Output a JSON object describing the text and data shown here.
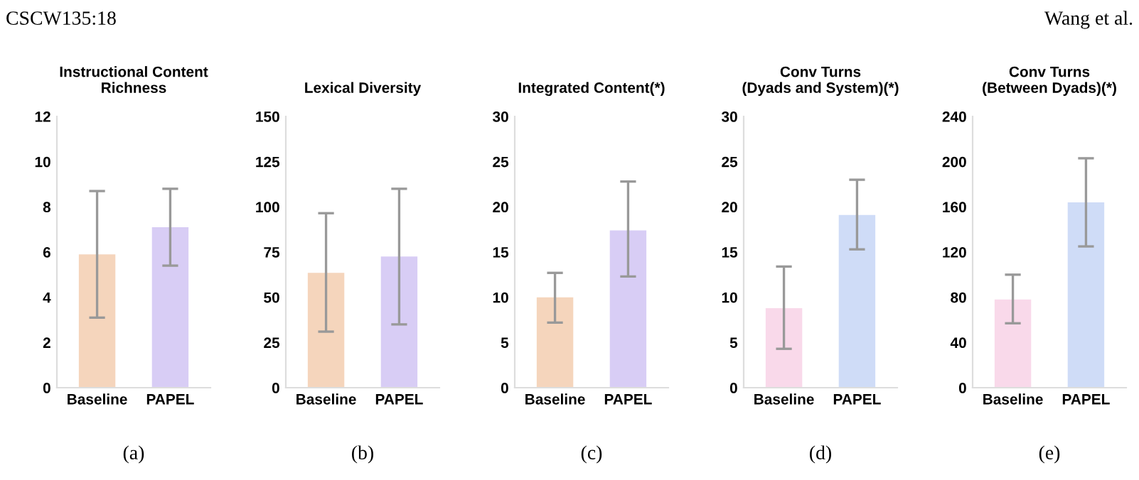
{
  "chart_data": [
    {
      "type": "bar",
      "title": "Instructional Content\nRichness",
      "categories": [
        "Baseline",
        "PAPEL"
      ],
      "values": [
        5.9,
        7.1
      ],
      "colors": [
        "#f5d5bc",
        "#d8cdf5"
      ],
      "errors": [
        [
          3.1,
          8.7
        ],
        [
          5.4,
          8.8
        ]
      ],
      "ylim": [
        0,
        12
      ],
      "yticks": [
        0,
        2,
        4,
        6,
        8,
        10,
        12
      ],
      "annotations": [
        "CSCW135:18",
        "(a)"
      ]
    },
    {
      "type": "bar",
      "title": "Lexical Diversity",
      "categories": [
        "Baseline",
        "PAPEL"
      ],
      "values": [
        63.5,
        72.5
      ],
      "colors": [
        "#f5d5bc",
        "#d8cdf5"
      ],
      "errors": [
        [
          31,
          96.5
        ],
        [
          35,
          110
        ]
      ],
      "ylim": [
        0,
        150
      ],
      "yticks": [
        0,
        25,
        50,
        75,
        100,
        125,
        150
      ],
      "annotations": [
        "(b)"
      ]
    },
    {
      "type": "bar",
      "title": "Integrated Content(*)",
      "categories": [
        "Baseline",
        "PAPEL"
      ],
      "values": [
        10,
        17.4
      ],
      "colors": [
        "#f5d5bc",
        "#d8cdf5"
      ],
      "errors": [
        [
          7.2,
          12.7
        ],
        [
          12.3,
          22.8
        ]
      ],
      "ylim": [
        0,
        30
      ],
      "yticks": [
        0,
        5,
        10,
        15,
        20,
        25,
        30
      ],
      "annotations": [
        "(c)"
      ]
    },
    {
      "type": "bar",
      "title": "Conv Turns\n(Dyads and System)(*)",
      "categories": [
        "Baseline",
        "PAPEL"
      ],
      "values": [
        8.8,
        19.1
      ],
      "colors": [
        "#f9d9ea",
        "#cfdcf7"
      ],
      "errors": [
        [
          4.3,
          13.4
        ],
        [
          15.3,
          23
        ]
      ],
      "ylim": [
        0,
        30
      ],
      "yticks": [
        0,
        5,
        10,
        15,
        20,
        25,
        30
      ],
      "annotations": [
        "(d)"
      ]
    },
    {
      "type": "bar",
      "title": "Conv Turns\n(Between Dyads)(*)",
      "categories": [
        "Baseline",
        "PAPEL"
      ],
      "values": [
        78,
        164
      ],
      "colors": [
        "#f9d9ea",
        "#cfdcf7"
      ],
      "errors": [
        [
          57,
          100
        ],
        [
          125,
          203
        ]
      ],
      "ylim": [
        0,
        240
      ],
      "yticks": [
        0,
        40,
        80,
        120,
        160,
        200,
        240
      ],
      "annotations": [
        "Wang et al.",
        "(e)"
      ]
    }
  ]
}
